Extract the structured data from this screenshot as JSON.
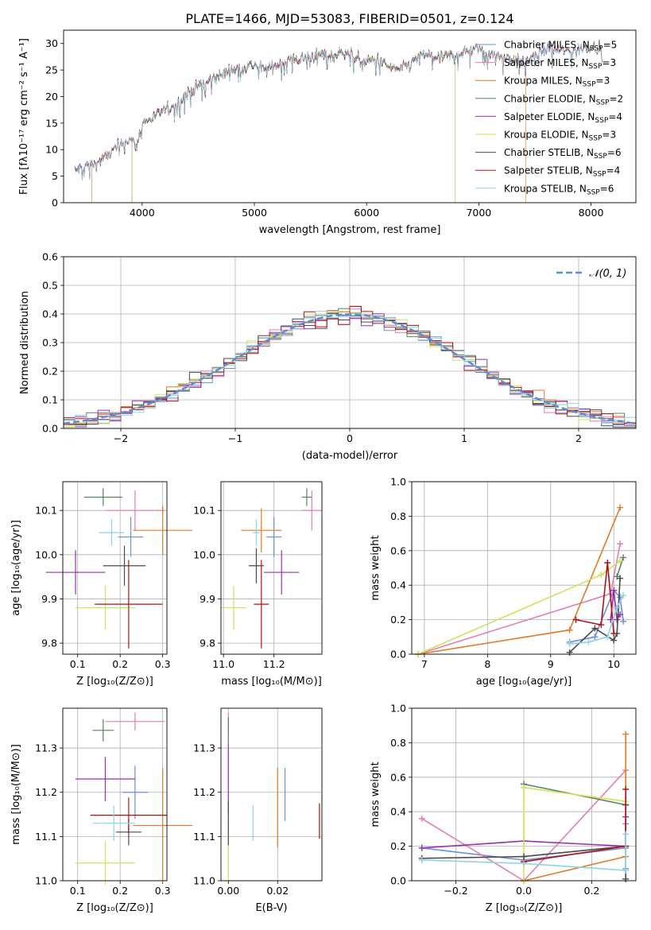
{
  "figure_title": "PLATE=1466, MJD=53083, FIBERID=0501, z=0.124",
  "colors": {
    "Chabrier MILES": "#6a8fdc",
    "Salpeter MILES": "#e07fb6",
    "Kroupa MILES": "#e07b27",
    "Chabrier ELODIE": "#5c8060",
    "Salpeter ELODIE": "#9b2fae",
    "Kroupa ELODIE": "#cfe35a",
    "Chabrier STELIB": "#4a4a4a",
    "Salpeter STELIB": "#b01116",
    "Kroupa STELIB": "#8ed3e5",
    "normal": "#5b8ed6",
    "grid": "#b0b0b0"
  },
  "chart_data": [
    {
      "id": "spectrum",
      "type": "line",
      "title": "PLATE=1466, MJD=53083, FIBERID=0501, z=0.124",
      "xlabel": "wavelength [Angstrom, rest frame]",
      "ylabel": "Flux [fλ10⁻¹⁷ erg cm⁻² s⁻¹ A⁻¹]",
      "xlim": [
        3300,
        8400
      ],
      "ylim": [
        0,
        32.5
      ],
      "xticks": [
        4000,
        5000,
        6000,
        7000,
        8000
      ],
      "yticks": [
        0,
        5,
        10,
        15,
        20,
        25,
        30
      ],
      "legend_position": "upper-right",
      "series": [
        {
          "name": "Chabrier MILES, N_SSP=5",
          "model": "Chabrier MILES",
          "range": [
            3400,
            8000
          ]
        },
        {
          "name": "Salpeter MILES, N_SSP=3",
          "model": "Salpeter MILES",
          "range": [
            3400,
            8000
          ]
        },
        {
          "name": "Kroupa MILES, N_SSP=3",
          "model": "Kroupa MILES",
          "range": [
            3550,
            7420
          ]
        },
        {
          "name": "Chabrier ELODIE, N_SSP=2",
          "model": "Chabrier ELODIE",
          "range": [
            3910,
            6790
          ]
        },
        {
          "name": "Salpeter ELODIE, N_SSP=4",
          "model": "Salpeter ELODIE",
          "range": [
            3910,
            6790
          ]
        },
        {
          "name": "Kroupa ELODIE, N_SSP=3",
          "model": "Kroupa ELODIE",
          "range": [
            3910,
            6790
          ]
        },
        {
          "name": "Chabrier STELIB, N_SSP=6",
          "model": "Chabrier STELIB",
          "range": [
            3400,
            8100
          ]
        },
        {
          "name": "Salpeter STELIB, N_SSP=4",
          "model": "Salpeter STELIB",
          "range": [
            3400,
            8000
          ]
        },
        {
          "name": "Kroupa STELIB, N_SSP=6",
          "model": "Kroupa STELIB",
          "range": [
            3400,
            8000
          ]
        }
      ],
      "continuum": [
        [
          3400,
          6.0
        ],
        [
          3500,
          7.0
        ],
        [
          3600,
          7.5
        ],
        [
          3700,
          9.0
        ],
        [
          3800,
          11.0
        ],
        [
          3900,
          12.0
        ],
        [
          3950,
          10.5
        ],
        [
          4000,
          15.0
        ],
        [
          4100,
          16.0
        ],
        [
          4200,
          17.5
        ],
        [
          4300,
          18.5
        ],
        [
          4400,
          20.5
        ],
        [
          4500,
          22.0
        ],
        [
          4600,
          23.0
        ],
        [
          4700,
          24.0
        ],
        [
          4800,
          25.0
        ],
        [
          4900,
          25.5
        ],
        [
          5000,
          26.0
        ],
        [
          5100,
          25.0
        ],
        [
          5200,
          26.0
        ],
        [
          5300,
          27.0
        ],
        [
          5400,
          27.0
        ],
        [
          5500,
          27.5
        ],
        [
          5600,
          28.0
        ],
        [
          5700,
          27.5
        ],
        [
          5800,
          28.5
        ],
        [
          5900,
          27.5
        ],
        [
          6000,
          26.5
        ],
        [
          6100,
          27.0
        ],
        [
          6200,
          25.5
        ],
        [
          6300,
          25.0
        ],
        [
          6400,
          26.5
        ],
        [
          6500,
          28.0
        ],
        [
          6600,
          27.5
        ],
        [
          6700,
          27.5
        ],
        [
          6800,
          28.0
        ],
        [
          6900,
          28.5
        ],
        [
          7000,
          29.0
        ],
        [
          7200,
          27.5
        ],
        [
          7400,
          26.5
        ],
        [
          7600,
          29.0
        ],
        [
          7800,
          28.5
        ],
        [
          8000,
          29.5
        ],
        [
          8100,
          29.0
        ]
      ]
    },
    {
      "id": "residuals",
      "type": "step",
      "xlabel": "(data-model)/error",
      "ylabel": "Normed distribution",
      "xlim": [
        -2.5,
        2.5
      ],
      "ylim": [
        0,
        0.6
      ],
      "xticks": [
        -2,
        -1,
        0,
        1,
        2
      ],
      "yticks": [
        0.0,
        0.1,
        0.2,
        0.3,
        0.4,
        0.5,
        0.6
      ],
      "legend": "𝒩(0, 1)",
      "legend_position": "upper-right",
      "bin_width": 0.1,
      "bin_start": -2.5
    },
    {
      "id": "age_vs_Z",
      "type": "errorbar",
      "xlabel": "Z [log₁₀(Z/Z⊙)]",
      "ylabel": "age [log₁₀(age/yr)]",
      "xlim": [
        0.065,
        0.31
      ],
      "ylim": [
        9.775,
        10.165
      ],
      "xticks": [
        0.1,
        0.2,
        0.3
      ],
      "yticks": [
        9.8,
        9.9,
        10.0,
        10.1
      ],
      "points": [
        {
          "model": "Chabrier MILES",
          "x": 0.225,
          "y": 10.04,
          "xerr": 0.03,
          "yerr": 0.045
        },
        {
          "model": "Salpeter MILES",
          "x": 0.235,
          "y": 10.1,
          "xerr": 0.07,
          "yerr": 0.045
        },
        {
          "model": "Kroupa MILES",
          "x": 0.3,
          "y": 10.055,
          "xerr": 0.07,
          "yerr": 0.055
        },
        {
          "model": "Chabrier ELODIE",
          "x": 0.16,
          "y": 10.13,
          "xerr": 0.045,
          "yerr": 0.02
        },
        {
          "model": "Salpeter ELODIE",
          "x": 0.095,
          "y": 9.96,
          "xerr": 0.07,
          "yerr": 0.05
        },
        {
          "model": "Kroupa ELODIE",
          "x": 0.165,
          "y": 9.88,
          "xerr": 0.07,
          "yerr": 0.05
        },
        {
          "model": "Chabrier STELIB",
          "x": 0.21,
          "y": 9.975,
          "xerr": 0.05,
          "yerr": 0.045
        },
        {
          "model": "Salpeter STELIB",
          "x": 0.22,
          "y": 9.888,
          "xerr": 0.08,
          "yerr": 0.1
        },
        {
          "model": "Kroupa STELIB",
          "x": 0.18,
          "y": 10.05,
          "xerr": 0.03,
          "yerr": 0.03
        }
      ]
    },
    {
      "id": "age_vs_mass",
      "type": "errorbar",
      "xlabel": "mass [log₁₀(M/M⊙)]",
      "ylabel": "",
      "xlim": [
        10.99,
        11.39
      ],
      "ylim": [
        9.775,
        10.165
      ],
      "xticks": [
        11.0,
        11.2
      ],
      "yticks": [
        9.8,
        9.9,
        10.0,
        10.1
      ],
      "points": [
        {
          "model": "Chabrier MILES",
          "x": 11.2,
          "y": 10.04,
          "xerr": 0.03,
          "yerr": 0.045
        },
        {
          "model": "Salpeter MILES",
          "x": 11.35,
          "y": 10.1,
          "xerr": 0.04,
          "yerr": 0.045
        },
        {
          "model": "Kroupa MILES",
          "x": 11.15,
          "y": 10.055,
          "xerr": 0.08,
          "yerr": 0.05
        },
        {
          "model": "Chabrier ELODIE",
          "x": 11.33,
          "y": 10.13,
          "xerr": 0.02,
          "yerr": 0.02
        },
        {
          "model": "Salpeter ELODIE",
          "x": 11.23,
          "y": 9.96,
          "xerr": 0.07,
          "yerr": 0.05
        },
        {
          "model": "Kroupa ELODIE",
          "x": 11.04,
          "y": 9.88,
          "xerr": 0.05,
          "yerr": 0.05
        },
        {
          "model": "Chabrier STELIB",
          "x": 11.13,
          "y": 9.975,
          "xerr": 0.03,
          "yerr": 0.04
        },
        {
          "model": "Salpeter STELIB",
          "x": 11.15,
          "y": 9.888,
          "xerr": 0.03,
          "yerr": 0.1
        },
        {
          "model": "Kroupa STELIB",
          "x": 11.13,
          "y": 10.05,
          "xerr": 0.015,
          "yerr": 0.03
        }
      ]
    },
    {
      "id": "weight_vs_age",
      "type": "line",
      "xlabel": "age [log₁₀(age/yr)]",
      "ylabel": "mass weight",
      "xlim": [
        6.8,
        10.35
      ],
      "ylim": [
        0,
        1.0
      ],
      "xticks": [
        7,
        8,
        9,
        10
      ],
      "yticks": [
        0.0,
        0.2,
        0.4,
        0.6,
        0.8,
        1.0
      ],
      "series": [
        {
          "model": "Chabrier MILES",
          "points": [
            [
              9.3,
              0.07
            ],
            [
              9.7,
              0.1
            ],
            [
              10.0,
              0.37
            ],
            [
              10.1,
              0.33
            ],
            [
              10.15,
              0.19
            ]
          ]
        },
        {
          "model": "Salpeter MILES",
          "points": [
            [
              6.9,
              0.0
            ],
            [
              9.95,
              0.35
            ],
            [
              10.1,
              0.64
            ]
          ]
        },
        {
          "model": "Kroupa MILES",
          "points": [
            [
              6.9,
              0.0
            ],
            [
              9.3,
              0.14
            ],
            [
              10.1,
              0.85
            ]
          ]
        },
        {
          "model": "Chabrier ELODIE",
          "points": [
            [
              10.05,
              0.45
            ],
            [
              10.15,
              0.56
            ]
          ]
        },
        {
          "model": "Salpeter ELODIE",
          "points": [
            [
              9.95,
              0.2
            ],
            [
              10.0,
              0.37
            ],
            [
              10.05,
              0.2
            ],
            [
              10.1,
              0.23
            ]
          ]
        },
        {
          "model": "Kroupa ELODIE",
          "points": [
            [
              6.9,
              0.0
            ],
            [
              9.8,
              0.46
            ],
            [
              10.1,
              0.54
            ]
          ]
        },
        {
          "model": "Chabrier STELIB",
          "points": [
            [
              9.3,
              0.01
            ],
            [
              9.7,
              0.15
            ],
            [
              10.0,
              0.08
            ],
            [
              10.05,
              0.12
            ],
            [
              10.1,
              0.44
            ]
          ]
        },
        {
          "model": "Salpeter STELIB",
          "points": [
            [
              9.4,
              0.2
            ],
            [
              9.8,
              0.17
            ],
            [
              9.9,
              0.53
            ],
            [
              10.0,
              0.12
            ]
          ]
        },
        {
          "model": "Kroupa STELIB",
          "points": [
            [
              9.3,
              0.06
            ],
            [
              9.6,
              0.07
            ],
            [
              9.9,
              0.1
            ],
            [
              10.05,
              0.27
            ],
            [
              10.15,
              0.34
            ]
          ]
        }
      ]
    },
    {
      "id": "mass_vs_Z",
      "type": "errorbar",
      "xlabel": "Z [log₁₀(Z/Z⊙)]",
      "ylabel": "mass [log₁₀(M/M⊙)]",
      "xlim": [
        0.065,
        0.31
      ],
      "ylim": [
        11.0,
        11.39
      ],
      "xticks": [
        0.1,
        0.2,
        0.3
      ],
      "yticks": [
        11.0,
        11.1,
        11.2,
        11.3
      ],
      "points": [
        {
          "model": "Chabrier MILES",
          "x": 0.235,
          "y": 11.2,
          "xerr": 0.03,
          "yerr": 0.06
        },
        {
          "model": "Salpeter MILES",
          "x": 0.235,
          "y": 11.36,
          "xerr": 0.07,
          "yerr": 0.02
        },
        {
          "model": "Kroupa MILES",
          "x": 0.3,
          "y": 11.125,
          "xerr": 0.07,
          "yerr": 0.13
        },
        {
          "model": "Chabrier ELODIE",
          "x": 0.16,
          "y": 11.34,
          "xerr": 0.025,
          "yerr": 0.025
        },
        {
          "model": "Salpeter ELODIE",
          "x": 0.165,
          "y": 11.23,
          "xerr": 0.07,
          "yerr": 0.05
        },
        {
          "model": "Kroupa ELODIE",
          "x": 0.165,
          "y": 11.04,
          "xerr": 0.07,
          "yerr": 0.05
        },
        {
          "model": "Chabrier STELIB",
          "x": 0.22,
          "y": 11.11,
          "xerr": 0.03,
          "yerr": 0.03
        },
        {
          "model": "Salpeter STELIB",
          "x": 0.22,
          "y": 11.148,
          "xerr": 0.09,
          "yerr": 0.04
        },
        {
          "model": "Kroupa STELIB",
          "x": 0.185,
          "y": 11.13,
          "xerr": 0.05,
          "yerr": 0.04
        }
      ]
    },
    {
      "id": "mass_vs_EBV",
      "type": "errorbar",
      "xlabel": "E(B-V)",
      "ylabel": "",
      "xlim": [
        -0.003,
        0.038
      ],
      "ylim": [
        11.0,
        11.39
      ],
      "xticks": [
        0.0,
        0.02
      ],
      "yticks": [
        11.0,
        11.1,
        11.2,
        11.3
      ],
      "points": [
        {
          "model": "Chabrier MILES",
          "x": 0.023,
          "y": 11.195,
          "xerr": 0,
          "yerr": 0.06
        },
        {
          "model": "Salpeter MILES",
          "x": 0.0,
          "y": 11.36,
          "xerr": 0,
          "yerr": 0.02
        },
        {
          "model": "Kroupa MILES",
          "x": 0.02,
          "y": 11.165,
          "xerr": 0,
          "yerr": 0.09
        },
        {
          "model": "Chabrier ELODIE",
          "x": 0.0,
          "y": 11.34,
          "xerr": 0,
          "yerr": 0.03
        },
        {
          "model": "Salpeter ELODIE",
          "x": 0.0,
          "y": 11.23,
          "xerr": 0,
          "yerr": 0.08
        },
        {
          "model": "Kroupa ELODIE",
          "x": 0.0,
          "y": 11.07,
          "xerr": 0,
          "yerr": 0.07
        },
        {
          "model": "Chabrier STELIB",
          "x": 0.0,
          "y": 11.13,
          "xerr": 0,
          "yerr": 0.05
        },
        {
          "model": "Salpeter STELIB",
          "x": 0.037,
          "y": 11.135,
          "xerr": 0,
          "yerr": 0.04
        },
        {
          "model": "Kroupa STELIB",
          "x": 0.01,
          "y": 11.13,
          "xerr": 0,
          "yerr": 0.04
        }
      ]
    },
    {
      "id": "weight_vs_Z",
      "type": "line",
      "xlabel": "Z [log₁₀(Z/Z⊙)]",
      "ylabel": "mass weight",
      "xlim": [
        -0.33,
        0.33
      ],
      "ylim": [
        0,
        1.0
      ],
      "xticks": [
        -0.2,
        0.0,
        0.2
      ],
      "yticks": [
        0.0,
        0.2,
        0.4,
        0.6,
        0.8,
        1.0
      ],
      "series": [
        {
          "model": "Chabrier MILES",
          "points": [
            [
              -0.3,
              0.19
            ],
            [
              0.0,
              0.12
            ],
            [
              0.3,
              0.19
            ],
            [
              0.3,
              0.33
            ],
            [
              0.3,
              0.07
            ]
          ]
        },
        {
          "model": "Salpeter MILES",
          "points": [
            [
              -0.3,
              0.36
            ],
            [
              0.0,
              0.0
            ],
            [
              0.3,
              0.64
            ]
          ]
        },
        {
          "model": "Kroupa MILES",
          "points": [
            [
              0.0,
              0.0
            ],
            [
              0.3,
              0.14
            ],
            [
              0.3,
              0.85
            ]
          ]
        },
        {
          "model": "Chabrier ELODIE",
          "points": [
            [
              0.0,
              0.56
            ],
            [
              0.3,
              0.44
            ]
          ]
        },
        {
          "model": "Salpeter ELODIE",
          "points": [
            [
              -0.3,
              0.19
            ],
            [
              0.0,
              0.23
            ],
            [
              0.3,
              0.2
            ],
            [
              0.3,
              0.37
            ]
          ]
        },
        {
          "model": "Kroupa ELODIE",
          "points": [
            [
              0.0,
              0.0
            ],
            [
              0.0,
              0.54
            ],
            [
              0.3,
              0.46
            ]
          ]
        },
        {
          "model": "Chabrier STELIB",
          "points": [
            [
              -0.3,
              0.13
            ],
            [
              0.0,
              0.14
            ],
            [
              0.3,
              0.2
            ],
            [
              0.3,
              0.01
            ],
            [
              0.3,
              0.44
            ]
          ]
        },
        {
          "model": "Salpeter STELIB",
          "points": [
            [
              0.0,
              0.11
            ],
            [
              0.3,
              0.2
            ],
            [
              0.3,
              0.53
            ]
          ]
        },
        {
          "model": "Kroupa STELIB",
          "points": [
            [
              -0.3,
              0.12
            ],
            [
              0.0,
              0.1
            ],
            [
              0.3,
              0.06
            ],
            [
              0.3,
              0.27
            ]
          ]
        }
      ]
    }
  ]
}
